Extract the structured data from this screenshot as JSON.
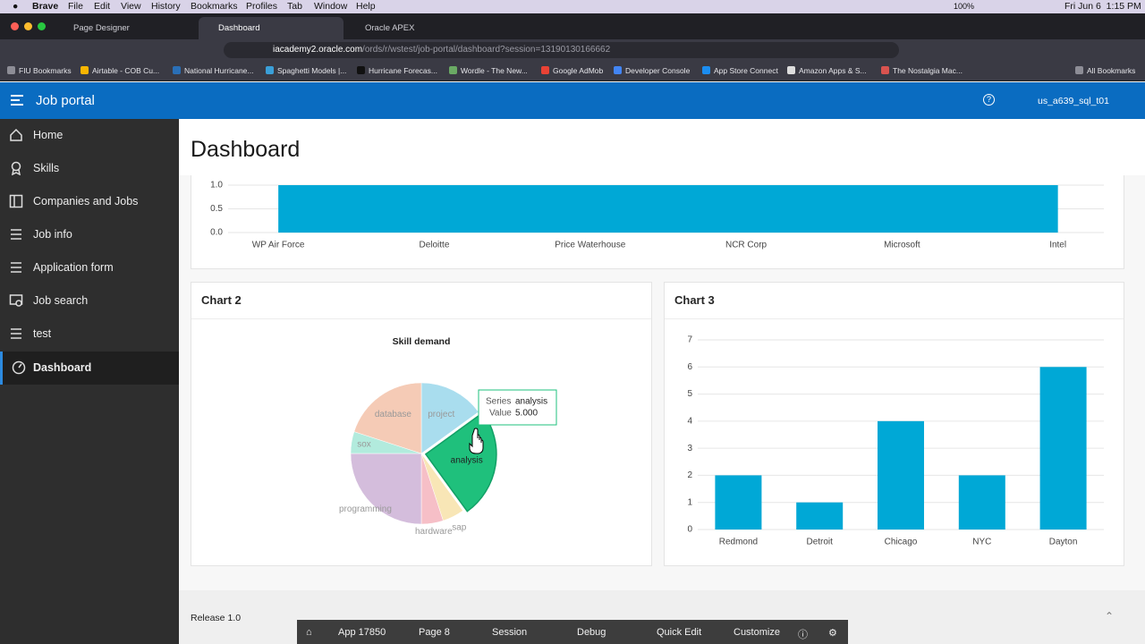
{
  "menu_bar": {
    "app": "Brave",
    "items": [
      "File",
      "Edit",
      "View",
      "History",
      "Bookmarks",
      "Profiles",
      "Tab",
      "Window",
      "Help"
    ],
    "battery": "100%",
    "clock": "Fri Jun 6  1:15 PM"
  },
  "tabs": [
    "Page Designer",
    "Dashboard",
    "Oracle APEX"
  ],
  "address": {
    "host": "iacademy2.oracle.com",
    "path": "/ords/r/wstest/job-portal/dashboard?session=13190130166662"
  },
  "bookmarks": [
    "FIU Bookmarks",
    "Airtable - COB Cu...",
    "National Hurricane...",
    "Spaghetti Models |...",
    "Hurricane Forecas...",
    "Wordle - The New...",
    "Google AdMob",
    "Developer Console",
    "App Store Connect",
    "Amazon Apps & S...",
    "The Nostalgia Mac..."
  ],
  "all_bookmarks": "All Bookmarks",
  "app": {
    "title": "Job portal",
    "user": "us_a639_sql_t01"
  },
  "nav": [
    "Home",
    "Skills",
    "Companies and Jobs",
    "Job info",
    "Application form",
    "Job search",
    "test",
    "Dashboard"
  ],
  "page_title": "Dashboard",
  "chart_data": [
    {
      "type": "area",
      "categories": [
        "WP Air Force",
        "Deloitte",
        "Price Waterhouse",
        "NCR Corp",
        "Microsoft",
        "Intel"
      ],
      "values": [
        1,
        1,
        1,
        1,
        1,
        1
      ],
      "color": "#00a8d6",
      "ylim": [
        0,
        1
      ],
      "yticks": [
        {
          "value": 0,
          "label": "0.0"
        },
        {
          "value": 0.5,
          "label": "0.5"
        },
        {
          "value": 1,
          "label": "1.0"
        }
      ],
      "grid": true
    },
    {
      "type": "pie",
      "region_title": "Chart 2",
      "title": "Skill demand",
      "categories": [
        "project",
        "analysis",
        "sap",
        "hardware",
        "programming",
        "sox",
        "database"
      ],
      "values": [
        3,
        5,
        1,
        1,
        5,
        1,
        4
      ],
      "colors": [
        "#a9ddee",
        "#1fc07c",
        "#f8e6b6",
        "#f6bfc7",
        "#d4bddc",
        "#b2ebdd",
        "#f5cbb6"
      ],
      "highlight": 1,
      "tooltip": {
        "series_label": "Series",
        "value_label": "Value",
        "value": "5.000"
      }
    },
    {
      "type": "bar",
      "region_title": "Chart 3",
      "categories": [
        "Redmond",
        "Detroit",
        "Chicago",
        "NYC",
        "Dayton"
      ],
      "values": [
        2,
        1,
        4,
        2,
        6
      ],
      "color": "#00a8d6",
      "ylim": [
        0,
        7
      ],
      "yticks": [
        0,
        1,
        2,
        3,
        4,
        5,
        6,
        7
      ],
      "grid": true
    }
  ],
  "footer": {
    "release": "Release 1.0"
  },
  "dev_toolbar": [
    "App 17850",
    "Page 8",
    "Session",
    "Debug",
    "Quick Edit",
    "Customize"
  ]
}
